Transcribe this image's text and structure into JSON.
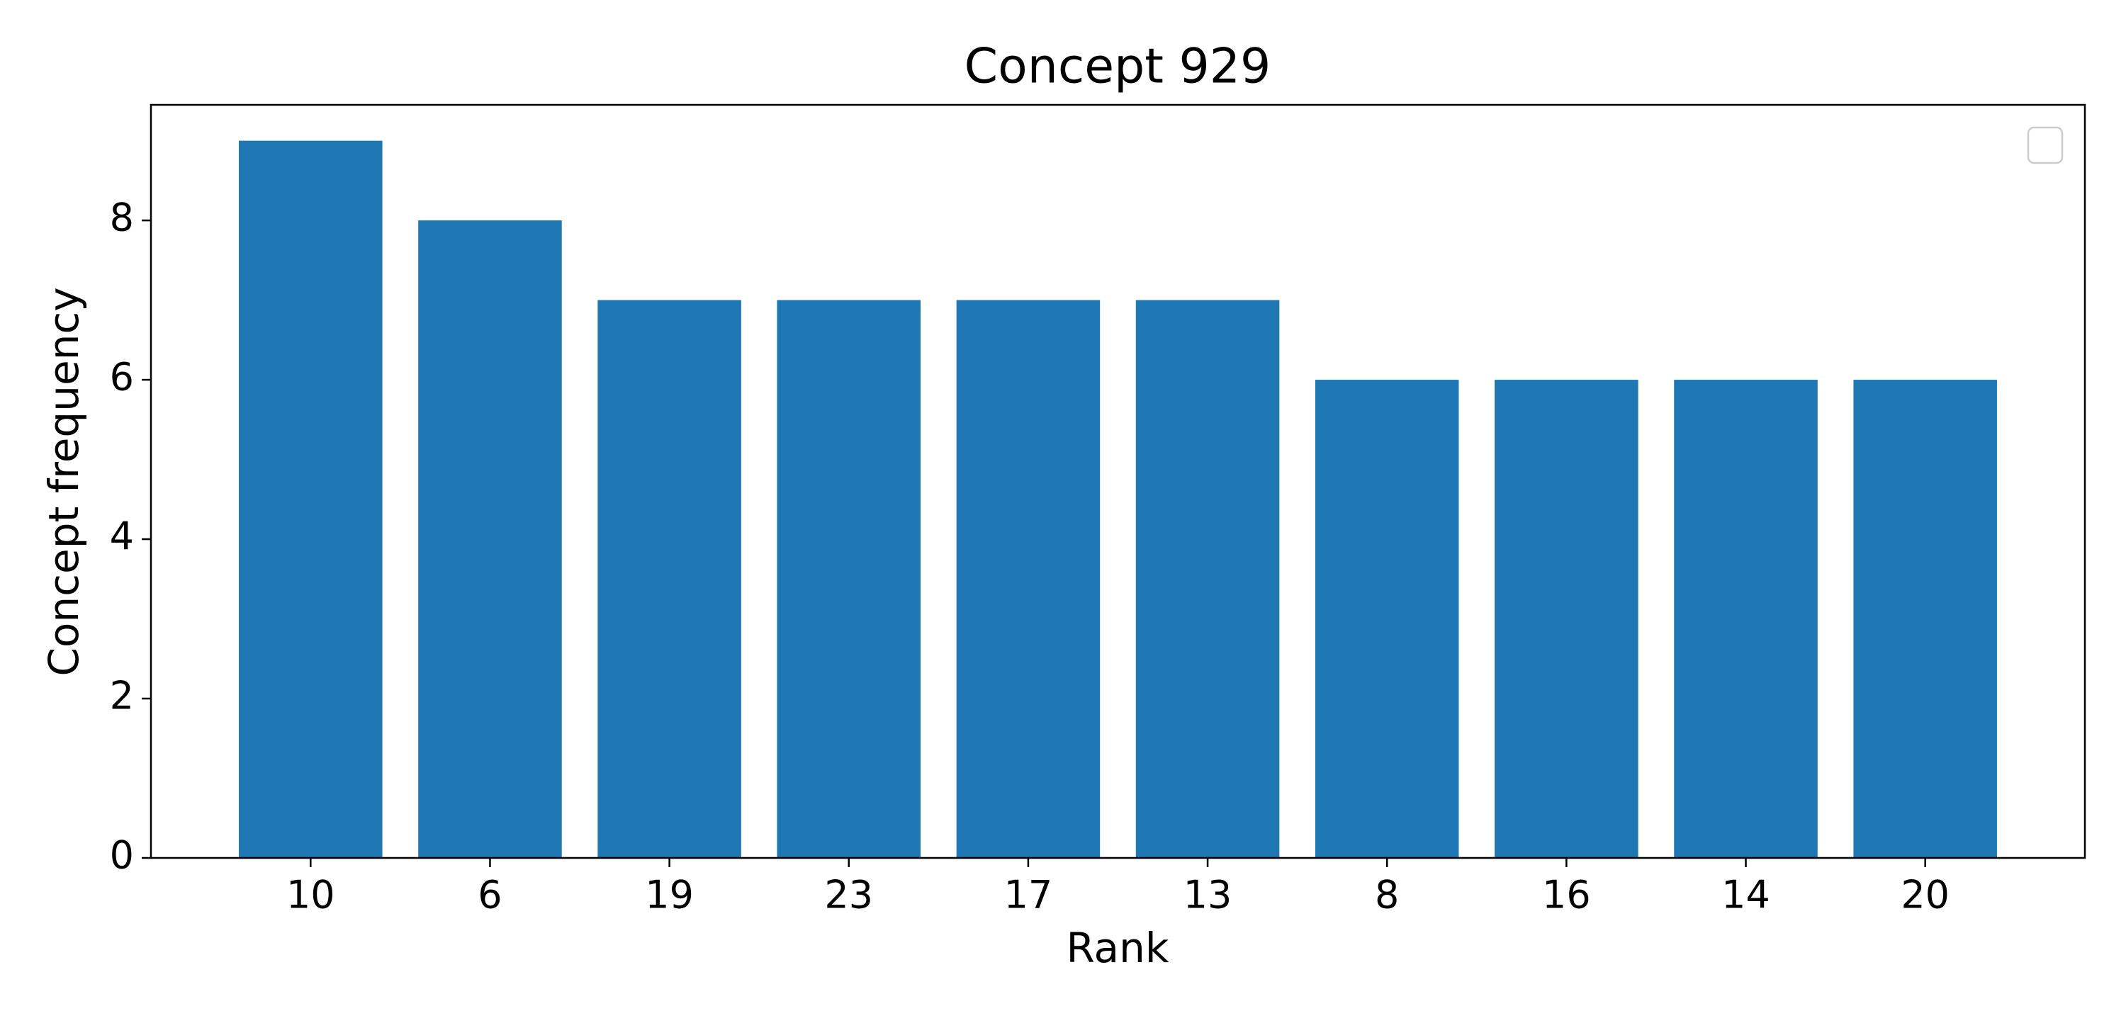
{
  "chart_data": {
    "type": "bar",
    "title": "Concept 929",
    "x_label": "Rank",
    "y_label": "Concept frequency",
    "categories": [
      "10",
      "6",
      "19",
      "23",
      "17",
      "13",
      "8",
      "16",
      "14",
      "20"
    ],
    "values": [
      9,
      8,
      7,
      7,
      7,
      7,
      6,
      6,
      6,
      6
    ],
    "color": "#1f77b4",
    "ylim": [
      0,
      9.45
    ],
    "yticks": [
      0,
      2,
      4,
      6,
      8
    ],
    "grid": false
  }
}
